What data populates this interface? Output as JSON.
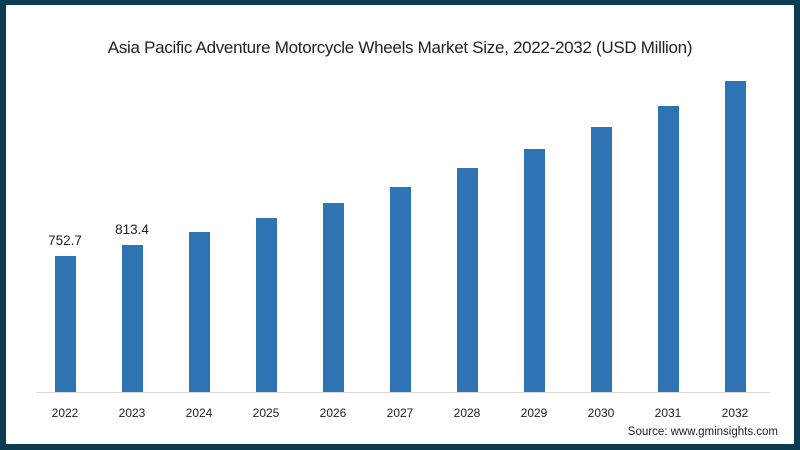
{
  "chart_data": {
    "type": "bar",
    "title": "Asia Pacific Adventure Motorcycle Wheels Market Size, 2022-2032 (USD Million)",
    "xlabel": "",
    "ylabel": "",
    "categories": [
      "2022",
      "2023",
      "2024",
      "2025",
      "2026",
      "2027",
      "2028",
      "2029",
      "2030",
      "2031",
      "2032"
    ],
    "values": [
      752.7,
      813.4,
      885,
      962,
      1045,
      1134,
      1239,
      1344,
      1466,
      1582,
      1720
    ],
    "data_labels": [
      "752.7",
      "813.4",
      "",
      "",
      "",
      "",
      "",
      "",
      "",
      "",
      ""
    ],
    "ylim": [
      0,
      1800
    ],
    "grid": false,
    "legend": null,
    "bar_color": "#2e74b5",
    "source": "Source: www.gminsights.com"
  },
  "colors": {
    "frame": "#0d3b4f",
    "bar": "#2e74b5",
    "axis": "#d9d9d9"
  }
}
